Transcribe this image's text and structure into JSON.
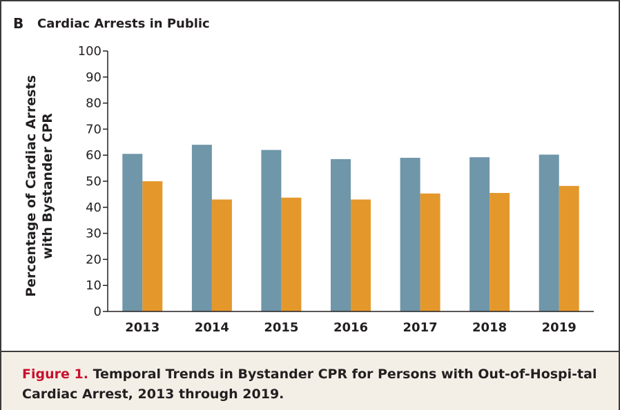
{
  "panel": {
    "letter": "B",
    "title": "Cardiac Arrests in Public"
  },
  "caption": {
    "label": "Figure 1.",
    "text": "Temporal Trends in Bystander CPR for Persons with Out-of-Hospi-tal Cardiac Arrest, 2013 through 2019."
  },
  "colors": {
    "series_a": "#6f96a9",
    "series_b": "#e4982c"
  },
  "chart_data": {
    "type": "bar",
    "title": "Cardiac Arrests in Public",
    "xlabel": "",
    "ylabel": "Percentage of Cardiac Arrests with Bystander CPR",
    "ylabel_lines": [
      "Percentage of Cardiac Arrests",
      "with Bystander CPR"
    ],
    "categories": [
      "2013",
      "2014",
      "2015",
      "2016",
      "2017",
      "2018",
      "2019"
    ],
    "series": [
      {
        "values": [
          60.5,
          64.0,
          62.0,
          58.5,
          59.0,
          59.2,
          60.2
        ]
      },
      {
        "values": [
          50.0,
          43.0,
          43.7,
          43.0,
          45.3,
          45.5,
          48.2
        ]
      }
    ],
    "ylim": [
      0,
      100
    ],
    "yticks": [
      0,
      10,
      20,
      30,
      40,
      50,
      60,
      70,
      80,
      90,
      100
    ],
    "grid": false,
    "legend": "none"
  }
}
